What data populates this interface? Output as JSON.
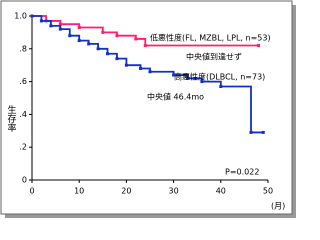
{
  "chart_data": {
    "type": "step",
    "y_label": "生存率",
    "x_label": "(月)",
    "xlim": [
      0,
      50
    ],
    "xticks": [
      0,
      10,
      20,
      30,
      40,
      50
    ],
    "ylim": [
      0,
      1
    ],
    "yticks": [
      0,
      {
        "value": 0.2,
        "label": ".2"
      },
      {
        "value": 0.4,
        "label": ".4"
      },
      {
        "value": 0.6,
        "label": ".6"
      },
      {
        "value": 0.8,
        "label": ".8"
      },
      {
        "value": 1,
        "label": "1.0"
      }
    ],
    "series": [
      {
        "name": "低悪性度(FL, MZBL, LPL, n=53)",
        "color": "#ff1f6e",
        "x": [
          0,
          3,
          6,
          10,
          15,
          18,
          22,
          24,
          48
        ],
        "values": [
          1,
          0.97,
          0.95,
          0.93,
          0.9,
          0.88,
          0.86,
          0.82,
          0.82
        ]
      },
      {
        "name": "高悪性度(DLBCL, n=73)",
        "color": "#1230c8",
        "x": [
          0,
          2,
          4,
          6,
          8,
          10,
          12,
          14,
          16,
          18,
          20,
          23,
          25,
          30,
          33,
          36,
          40,
          46.4,
          49
        ],
        "values": [
          1,
          0.97,
          0.94,
          0.92,
          0.88,
          0.85,
          0.83,
          0.8,
          0.77,
          0.74,
          0.7,
          0.68,
          0.66,
          0.64,
          0.62,
          0.6,
          0.57,
          0.29,
          0.29
        ]
      }
    ],
    "annotations": [
      "中央値到達せず",
      "中央値 46.4mo",
      "P=0.022"
    ]
  }
}
